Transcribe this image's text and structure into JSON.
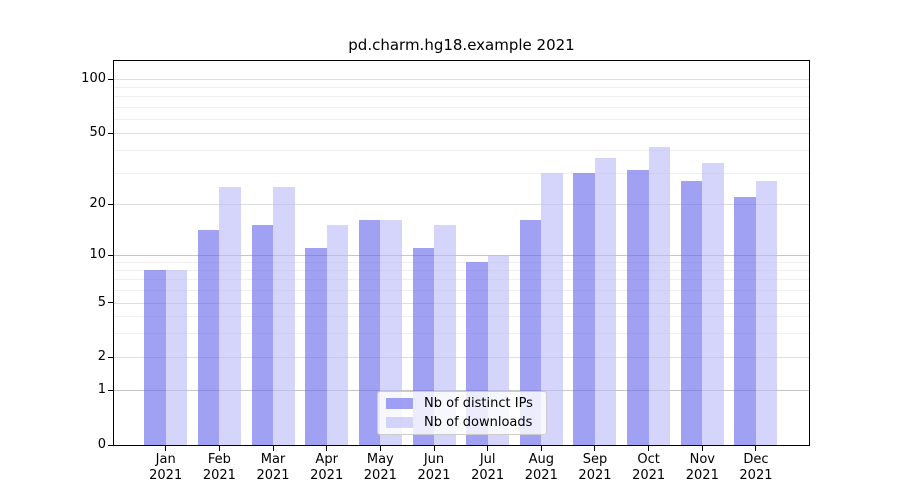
{
  "chart_data": {
    "type": "bar",
    "title": "pd.charm.hg18.example 2021",
    "categories": [
      "Jan",
      "Feb",
      "Mar",
      "Apr",
      "May",
      "Jun",
      "Jul",
      "Aug",
      "Sep",
      "Oct",
      "Nov",
      "Dec"
    ],
    "xtick_year": "2021",
    "series": [
      {
        "name": "Nb of distinct IPs",
        "color": "rgba(104,104,238,0.62)",
        "values": [
          8,
          14,
          15,
          11,
          16,
          11,
          9,
          16,
          30,
          31,
          27,
          22
        ]
      },
      {
        "name": "Nb of downloads",
        "color": "rgba(188,188,248,0.62)",
        "values": [
          8,
          25,
          25,
          15,
          16,
          15,
          10,
          30,
          36,
          42,
          34,
          27
        ]
      }
    ],
    "yscale": "symlog",
    "yticks": [
      0,
      1,
      2,
      5,
      10,
      20,
      50,
      100
    ],
    "y_strong_gridlines": [
      1,
      10
    ],
    "y_minor_gridlines": [
      3,
      4,
      6,
      7,
      8,
      9,
      30,
      40,
      60,
      70,
      80,
      90
    ],
    "ylim": [
      0,
      120
    ],
    "xlabel": "",
    "ylabel": "",
    "grid": true,
    "legend_position": "lower center"
  },
  "colors": {
    "ips_bar_solid": "#a1a1f4",
    "downloads_bar_solid": "#d5d5fb",
    "gridline_major": "#dedede",
    "gridline_strong": "#c6c6c6",
    "gridline_minor": "#efefef",
    "axis_spine": "#000000",
    "background": "#ffffff"
  }
}
